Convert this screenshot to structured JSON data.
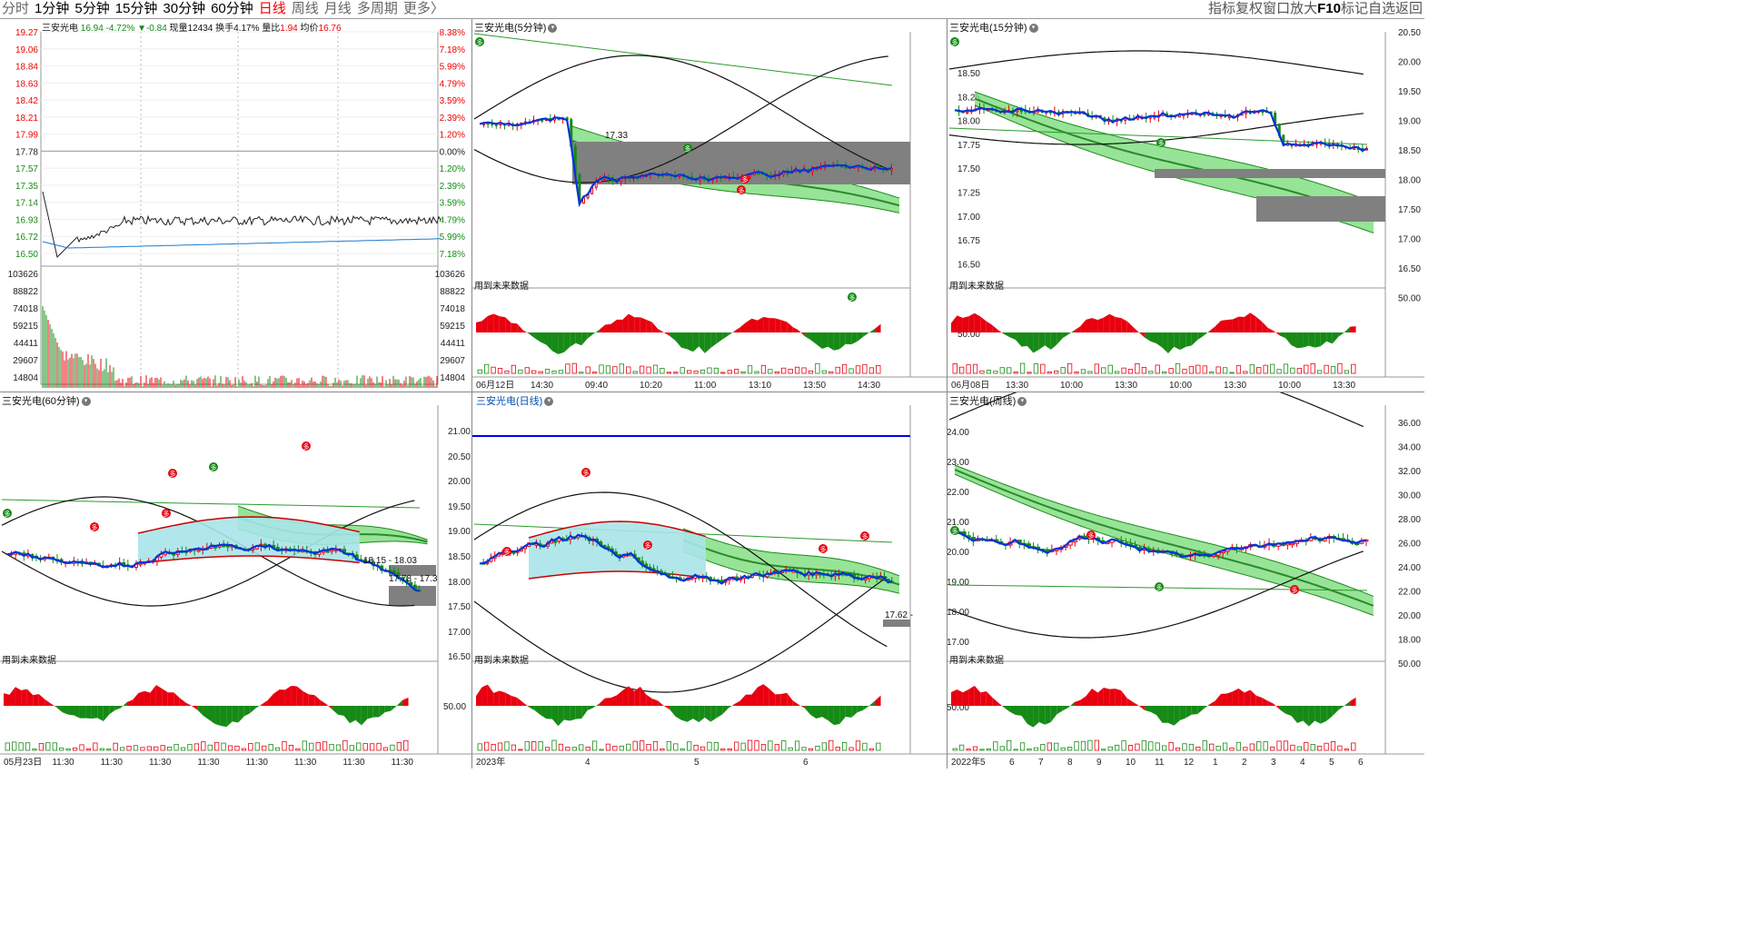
{
  "toolbar": {
    "tabs": [
      "分时",
      "1分钟",
      "5分钟",
      "15分钟",
      "30分钟",
      "60分钟",
      "日线",
      "周线",
      "月线",
      "多周期",
      "更多〉"
    ],
    "active_tab": "日线",
    "right_tools": [
      "指标",
      "复权",
      "窗口",
      "放大",
      "F10",
      "标记",
      "自选",
      "返回"
    ]
  },
  "intraday": {
    "name": "三安光电",
    "price": "16.94",
    "change_pct": "-4.72%",
    "change": "▼-0.84",
    "volume_label": "现量",
    "volume": "12434",
    "turnover_label": "换手",
    "turnover": "4.17%",
    "ratio_label": "量比",
    "ratio": "1.94",
    "avg_label": "均价",
    "avg": "16.76",
    "price_ticks": [
      "19.27",
      "19.06",
      "18.84",
      "18.63",
      "18.42",
      "18.21",
      "17.99",
      "17.78",
      "17.57",
      "17.35",
      "17.14",
      "16.93",
      "16.72",
      "16.50"
    ],
    "pct_ticks": [
      "8.38%",
      "7.18%",
      "5.99%",
      "4.79%",
      "3.59%",
      "2.39%",
      "1.20%",
      "0.00%",
      "1.20%",
      "2.39%",
      "3.59%",
      "4.79%",
      "5.99%",
      "7.18%"
    ],
    "vol_ticks": [
      "103626",
      "88822",
      "74018",
      "59215",
      "44411",
      "29607",
      "14804"
    ]
  },
  "p5": {
    "title": "三安光电(5分钟)",
    "price_label": "17.33",
    "note": "用到未来数据",
    "x_labels": [
      "06月12日",
      "14:30",
      "09:40",
      "10:20",
      "11:00",
      "13:10",
      "13:50",
      "14:30"
    ]
  },
  "p15": {
    "title": "三安光电(15分钟)",
    "y_ticks": [
      "18.50",
      "18.25",
      "18.00",
      "17.75",
      "17.50",
      "17.25",
      "17.00",
      "16.75",
      "16.50"
    ],
    "sub_tick": "50.00",
    "note": "用到未来数据",
    "x_labels": [
      "06月08日",
      "13:30",
      "10:00",
      "13:30",
      "10:00",
      "13:30",
      "10:00",
      "13:30"
    ],
    "right_ticks": [
      "20.50",
      "20.00",
      "19.50",
      "19.00",
      "18.50",
      "18.00",
      "17.50",
      "17.00",
      "16.50",
      "50.00"
    ]
  },
  "p60": {
    "title": "三安光电(60分钟)",
    "label1": "18.15 - 18.03",
    "label2": "17.78 - 17.3",
    "note": "用到未来数据",
    "x_labels": [
      "05月23日",
      "11:30",
      "11:30",
      "11:30",
      "11:30",
      "11:30",
      "11:30",
      "11:30",
      "11:30"
    ]
  },
  "pday": {
    "title": "三安光电(日线)",
    "y_ticks": [
      "21.00",
      "20.50",
      "20.00",
      "19.50",
      "19.00",
      "18.50",
      "18.00",
      "17.50",
      "17.00",
      "16.50"
    ],
    "sub_tick": "50.00",
    "label": "17.62 -",
    "note": "用到未来数据",
    "x_labels": [
      "2023年",
      "4",
      "5",
      "6"
    ]
  },
  "pweek": {
    "title": "三安光电(周线)",
    "y_ticks": [
      "24.00",
      "23.00",
      "22.00",
      "21.00",
      "20.00",
      "19.00",
      "18.00",
      "17.00"
    ],
    "sub_tick": "50.00",
    "note": "用到未来数据",
    "x_labels": [
      "2022年",
      "5",
      "6",
      "7",
      "8",
      "9",
      "10",
      "11",
      "12",
      "1",
      "2",
      "3",
      "4",
      "5",
      "6"
    ],
    "right_ticks": [
      "36.00",
      "34.00",
      "32.00",
      "30.00",
      "28.00",
      "26.00",
      "24.00",
      "22.00",
      "20.00",
      "18.00",
      "50.00"
    ]
  },
  "colors": {
    "up": "#e8000f",
    "down": "#168a16",
    "cloud": "#7ddc7d",
    "band": "#a8e4e8",
    "blue": "#0033dd",
    "zone": "#808080"
  }
}
